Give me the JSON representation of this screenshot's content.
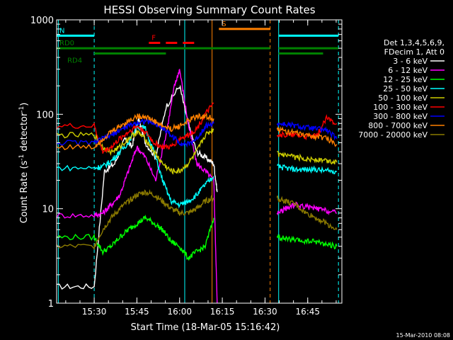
{
  "chart_data": {
    "type": "line",
    "title": "HESSI Observing Summary Count Rates",
    "xlabel": "Start Time (18-Mar-05 15:16:42)",
    "ylabel_main": "Count Rate (s",
    "ylabel_sup1": "-1",
    "ylabel_mid": " detector",
    "ylabel_sup2": "-1",
    "ylabel_end": ")",
    "yscale": "log",
    "ylim": [
      1,
      1000
    ],
    "xlim_min": [
      15.28,
      16.95
    ],
    "x_ticks": [
      {
        "value": 15.5,
        "label": "15:30"
      },
      {
        "value": 15.75,
        "label": "15:45"
      },
      {
        "value": 16.0,
        "label": "16:00"
      },
      {
        "value": 16.25,
        "label": "16:15"
      },
      {
        "value": 16.5,
        "label": "16:30"
      },
      {
        "value": 16.75,
        "label": "16:45"
      }
    ],
    "y_ticks": [
      {
        "value": 1,
        "label": "1"
      },
      {
        "value": 10,
        "label": "10"
      },
      {
        "value": 100,
        "label": "100"
      },
      {
        "value": 1000,
        "label": "1000"
      }
    ],
    "legend_header": [
      "Det 1,3,4,5,6,9,",
      "FDecim 1, Att 0"
    ],
    "legend_placement": "right",
    "series": [
      {
        "name": "3 - 6 keV",
        "color": "#ffffff",
        "x": [
          15.28,
          15.5,
          15.56,
          15.62,
          15.68,
          15.72,
          15.76,
          15.8,
          15.86,
          15.92,
          16.0,
          16.05,
          16.1,
          16.15,
          16.2,
          16.22
        ],
        "y": [
          1.5,
          1.5,
          25,
          30,
          55,
          45,
          90,
          50,
          35,
          120,
          200,
          80,
          40,
          35,
          30,
          15
        ]
      },
      {
        "name": "6 - 12 keV",
        "color": "#ff00ff",
        "x": [
          15.28,
          15.5,
          15.55,
          15.6,
          15.65,
          15.7,
          15.75,
          15.8,
          15.86,
          15.92,
          15.97,
          16.0,
          16.05,
          16.1,
          16.15,
          16.2,
          16.22
        ],
        "y": [
          8.5,
          8.5,
          9,
          11,
          14,
          25,
          45,
          35,
          20,
          60,
          200,
          300,
          80,
          30,
          25,
          20,
          1
        ],
        "x2": [
          16.57,
          16.62,
          16.68,
          16.74,
          16.8,
          16.86,
          16.92
        ],
        "y2": [
          9,
          10,
          11,
          10.5,
          10,
          9.5,
          9
        ]
      },
      {
        "name": "12 - 25 keV",
        "color": "#00ff00",
        "x": [
          15.28,
          15.5,
          15.55,
          15.6,
          15.65,
          15.7,
          15.75,
          15.8,
          15.85,
          15.9,
          15.95,
          16.0,
          16.05,
          16.1,
          16.15,
          16.2
        ],
        "y": [
          5,
          5,
          3.5,
          4,
          5,
          6,
          7,
          8,
          7,
          6,
          4.5,
          4,
          3,
          3.5,
          4,
          8
        ],
        "x2": [
          16.57,
          16.62,
          16.68,
          16.74,
          16.8,
          16.86,
          16.92
        ],
        "y2": [
          5,
          4.8,
          4.6,
          4.5,
          4.5,
          4.2,
          4
        ]
      },
      {
        "name": "25 - 50 keV",
        "color": "#00ffff",
        "x": [
          15.28,
          15.5,
          15.55,
          15.6,
          15.65,
          15.7,
          15.75,
          15.8,
          15.85,
          15.9,
          15.95,
          16.0,
          16.05,
          16.1,
          16.15,
          16.2
        ],
        "y": [
          27,
          27,
          28,
          32,
          40,
          50,
          75,
          70,
          40,
          20,
          12,
          11,
          12,
          14,
          18,
          22
        ],
        "x2": [
          16.57,
          16.62,
          16.68,
          16.74,
          16.8,
          16.86,
          16.92
        ],
        "y2": [
          28,
          27,
          26,
          26,
          26,
          25,
          25
        ]
      },
      {
        "name": "50 - 100 keV",
        "color": "#cccc00",
        "x": [
          15.28,
          15.5,
          15.55,
          15.6,
          15.65,
          15.7,
          15.75,
          15.8,
          15.85,
          15.9,
          15.95,
          16.0,
          16.05,
          16.1,
          16.15,
          16.2
        ],
        "y": [
          60,
          60,
          45,
          40,
          45,
          55,
          65,
          55,
          40,
          30,
          25,
          25,
          30,
          40,
          60,
          70
        ],
        "x2": [
          16.57,
          16.62,
          16.68,
          16.74,
          16.8,
          16.86,
          16.92
        ],
        "y2": [
          38,
          36,
          35,
          34,
          33,
          32,
          31
        ]
      },
      {
        "name": "100 - 300 keV",
        "color": "#ff0000",
        "x": [
          15.28,
          15.5,
          15.55,
          15.6,
          15.65,
          15.7,
          15.75,
          15.8,
          15.85,
          15.9,
          15.95,
          16.0,
          16.05,
          16.1,
          16.15,
          16.2
        ],
        "y": [
          75,
          75,
          40,
          45,
          55,
          65,
          75,
          65,
          50,
          45,
          45,
          55,
          60,
          70,
          100,
          130
        ],
        "x2": [
          16.57,
          16.62,
          16.68,
          16.74,
          16.8,
          16.86,
          16.92
        ],
        "y2": [
          62,
          60,
          60,
          58,
          58,
          90,
          80
        ]
      },
      {
        "name": "300 - 800 keV",
        "color": "#0000ff",
        "x": [
          15.28,
          15.5,
          15.55,
          15.6,
          15.65,
          15.7,
          15.75,
          15.8,
          15.85,
          15.9,
          15.95,
          16.0,
          16.05,
          16.1,
          16.15,
          16.2
        ],
        "y": [
          50,
          50,
          55,
          60,
          68,
          75,
          82,
          85,
          80,
          72,
          60,
          50,
          48,
          55,
          75,
          80
        ],
        "x2": [
          16.57,
          16.62,
          16.68,
          16.74,
          16.8,
          16.86,
          16.92
        ],
        "y2": [
          80,
          78,
          75,
          72,
          70,
          68,
          55
        ]
      },
      {
        "name": "800 - 7000 keV",
        "color": "#ff8000",
        "x": [
          15.28,
          15.5,
          15.55,
          15.6,
          15.65,
          15.7,
          15.75,
          15.8,
          15.85,
          15.9,
          15.95,
          16.0,
          16.05,
          16.1,
          16.15,
          16.2
        ],
        "y": [
          45,
          45,
          55,
          65,
          75,
          85,
          95,
          95,
          85,
          75,
          70,
          75,
          85,
          95,
          95,
          90
        ],
        "x2": [
          16.57,
          16.62,
          16.68,
          16.74,
          16.8,
          16.86,
          16.92
        ],
        "y2": [
          70,
          66,
          63,
          60,
          58,
          56,
          48
        ]
      },
      {
        "name": "7000 - 20000 keV",
        "color": "#8b7a00",
        "x": [
          15.28,
          15.5,
          15.55,
          15.6,
          15.65,
          15.7,
          15.75,
          15.8,
          15.85,
          15.9,
          15.95,
          16.0,
          16.05,
          16.1,
          16.15,
          16.2
        ],
        "y": [
          4,
          4,
          6,
          8,
          10,
          12,
          14,
          15,
          14,
          12,
          10,
          9,
          9,
          10,
          12,
          13
        ],
        "x2": [
          16.57,
          16.62,
          16.68,
          16.74,
          16.8,
          16.86,
          16.92
        ],
        "y2": [
          13,
          12,
          11,
          9,
          8,
          7,
          6
        ]
      }
    ],
    "flags": [
      {
        "label": "N",
        "color": "#00ffff",
        "level": 680,
        "segments": [
          [
            15.28,
            15.5
          ],
          [
            16.58,
            16.93
          ]
        ]
      },
      {
        "label": "F",
        "color": "#ff0000",
        "level": 570,
        "dashed": true,
        "segments": [
          [
            15.82,
            16.1
          ]
        ]
      },
      {
        "label": "S",
        "color": "#ff8000",
        "level": 800,
        "segments": [
          [
            16.23,
            16.53
          ]
        ]
      },
      {
        "label": "RD0",
        "color": "#008000",
        "level": 500,
        "segments": [
          [
            15.28,
            16.53
          ],
          [
            16.58,
            16.93
          ]
        ]
      },
      {
        "label": "RD4",
        "color": "#008000",
        "level": 440,
        "segments": [
          [
            15.5,
            15.92
          ],
          [
            16.58,
            16.84
          ]
        ]
      }
    ],
    "vlines": [
      {
        "x": 15.5,
        "color": "#00ffff",
        "dashed": true
      },
      {
        "x": 15.29,
        "color": "#00ffff",
        "dashed": false
      },
      {
        "x": 16.03,
        "color": "#00ffff",
        "dashed": false
      },
      {
        "x": 16.19,
        "color": "#ff8000",
        "dashed": false
      },
      {
        "x": 16.53,
        "color": "#ff8000",
        "dashed": true
      },
      {
        "x": 16.58,
        "color": "#00ffff",
        "dashed": false
      },
      {
        "x": 16.93,
        "color": "#00ffff",
        "dashed": true
      }
    ]
  },
  "footer_timestamp": "15-Mar-2010 08:08"
}
